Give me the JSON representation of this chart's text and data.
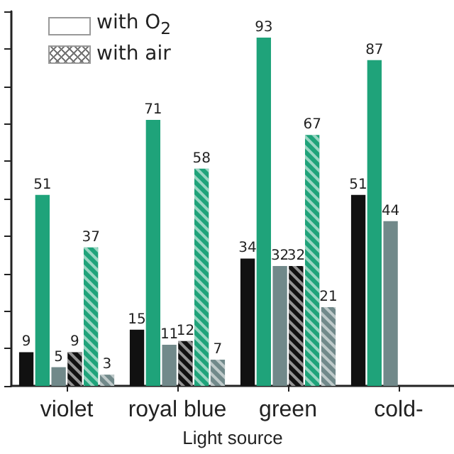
{
  "chart_data": {
    "type": "bar",
    "xlabel": "Light source",
    "categories": [
      "violet",
      "royal blue",
      "green",
      "cold-"
    ],
    "series": [
      {
        "color": "#111111",
        "values": [
          9,
          15,
          34,
          51
        ]
      },
      {
        "color": "#1fa37a",
        "values": [
          51,
          71,
          93,
          87
        ]
      },
      {
        "color": "#71898a",
        "values": [
          5,
          11,
          32,
          44
        ]
      },
      {
        "color": "#111111",
        "values": [
          9,
          12,
          32,
          null
        ]
      },
      {
        "color": "#1fa37a",
        "values": [
          37,
          58,
          67,
          null
        ]
      },
      {
        "color": "#71898a",
        "values": [
          3,
          7,
          21,
          null
        ]
      }
    ],
    "ylim": [
      0,
      100
    ],
    "yticks": [
      {
        "value": 0,
        "label": null
      },
      {
        "value": 10,
        "label": null
      },
      {
        "value": 20,
        "label": null
      },
      {
        "value": 30,
        "label": null
      },
      {
        "value": 40,
        "label": null
      },
      {
        "value": 50,
        "label": null
      },
      {
        "value": 60,
        "label": null
      },
      {
        "value": 70,
        "label": null
      },
      {
        "value": 80,
        "label": null
      },
      {
        "value": 90,
        "label": null
      },
      {
        "value": 100,
        "label": null
      }
    ],
    "tick_labels": "x",
    "grid": false,
    "data_labels": true,
    "annotations": [
      "with O$_{2}$",
      "with air"
    ]
  }
}
